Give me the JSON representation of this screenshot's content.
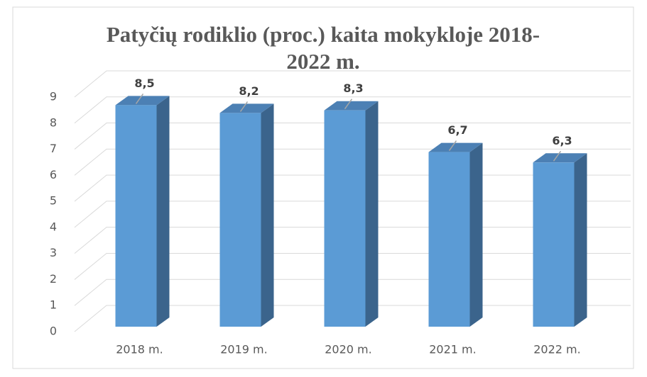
{
  "chart_data": {
    "type": "bar3d",
    "title": "Patyčių rodiklio (proc.) kaita mokykloje 2018-2022 m.",
    "categories": [
      "2018 m.",
      "2019 m.",
      "2020 m.",
      "2021 m.",
      "2022 m."
    ],
    "values": [
      8.5,
      8.2,
      8.3,
      6.7,
      6.3
    ],
    "value_labels": [
      "8,5",
      "8,2",
      "8,3",
      "6,7",
      "6,3"
    ],
    "color": "#5b9bd5",
    "ylim": [
      0,
      9
    ],
    "yticks": [
      0,
      1,
      2,
      3,
      4,
      5,
      6,
      7,
      8,
      9
    ],
    "grid": true
  }
}
